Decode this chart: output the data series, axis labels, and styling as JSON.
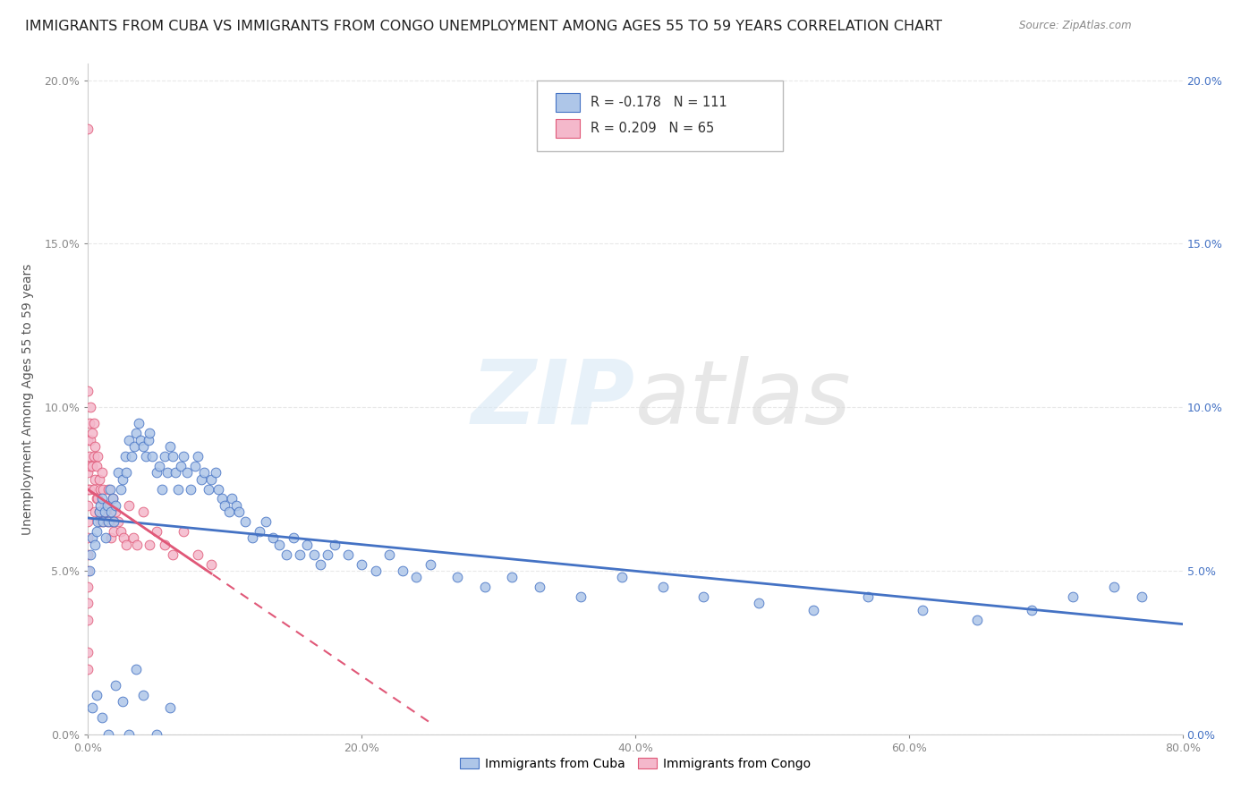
{
  "title": "IMMIGRANTS FROM CUBA VS IMMIGRANTS FROM CONGO UNEMPLOYMENT AMONG AGES 55 TO 59 YEARS CORRELATION CHART",
  "source": "Source: ZipAtlas.com",
  "ylabel": "Unemployment Among Ages 55 to 59 years",
  "xlim": [
    0.0,
    0.8
  ],
  "ylim": [
    0.0,
    0.205
  ],
  "xticks": [
    0.0,
    0.2,
    0.4,
    0.6,
    0.8
  ],
  "xticklabels": [
    "0.0%",
    "20.0%",
    "40.0%",
    "60.0%",
    "80.0%"
  ],
  "yticks": [
    0.0,
    0.05,
    0.1,
    0.15,
    0.2
  ],
  "yticklabels_left": [
    "0.0%",
    "5.0%",
    "10.0%",
    "15.0%",
    "20.0%"
  ],
  "yticklabels_right": [
    "0.0%",
    "5.0%",
    "10.0%",
    "15.0%",
    "20.0%"
  ],
  "cuba_R": -0.178,
  "cuba_N": 111,
  "congo_R": 0.209,
  "congo_N": 65,
  "cuba_color": "#aec6e8",
  "congo_color": "#f4b8cb",
  "cuba_line_color": "#4472c4",
  "congo_line_color": "#e05878",
  "watermark": "ZIPatlas",
  "background_color": "#ffffff",
  "cuba_scatter_x": [
    0.001,
    0.002,
    0.003,
    0.005,
    0.006,
    0.007,
    0.008,
    0.009,
    0.01,
    0.011,
    0.012,
    0.013,
    0.014,
    0.015,
    0.016,
    0.017,
    0.018,
    0.019,
    0.02,
    0.022,
    0.024,
    0.025,
    0.027,
    0.028,
    0.03,
    0.032,
    0.034,
    0.035,
    0.037,
    0.038,
    0.04,
    0.042,
    0.044,
    0.045,
    0.047,
    0.05,
    0.052,
    0.054,
    0.056,
    0.058,
    0.06,
    0.062,
    0.064,
    0.066,
    0.068,
    0.07,
    0.072,
    0.075,
    0.078,
    0.08,
    0.083,
    0.085,
    0.088,
    0.09,
    0.093,
    0.095,
    0.098,
    0.1,
    0.103,
    0.105,
    0.108,
    0.11,
    0.115,
    0.12,
    0.125,
    0.13,
    0.135,
    0.14,
    0.145,
    0.15,
    0.155,
    0.16,
    0.165,
    0.17,
    0.175,
    0.18,
    0.19,
    0.2,
    0.21,
    0.22,
    0.23,
    0.24,
    0.25,
    0.27,
    0.29,
    0.31,
    0.33,
    0.36,
    0.39,
    0.42,
    0.45,
    0.49,
    0.53,
    0.57,
    0.61,
    0.65,
    0.69,
    0.72,
    0.75,
    0.77,
    0.003,
    0.006,
    0.01,
    0.015,
    0.02,
    0.025,
    0.03,
    0.035,
    0.04,
    0.05,
    0.06
  ],
  "cuba_scatter_y": [
    0.05,
    0.055,
    0.06,
    0.058,
    0.062,
    0.065,
    0.068,
    0.07,
    0.072,
    0.065,
    0.068,
    0.06,
    0.07,
    0.065,
    0.075,
    0.068,
    0.072,
    0.065,
    0.07,
    0.08,
    0.075,
    0.078,
    0.085,
    0.08,
    0.09,
    0.085,
    0.088,
    0.092,
    0.095,
    0.09,
    0.088,
    0.085,
    0.09,
    0.092,
    0.085,
    0.08,
    0.082,
    0.075,
    0.085,
    0.08,
    0.088,
    0.085,
    0.08,
    0.075,
    0.082,
    0.085,
    0.08,
    0.075,
    0.082,
    0.085,
    0.078,
    0.08,
    0.075,
    0.078,
    0.08,
    0.075,
    0.072,
    0.07,
    0.068,
    0.072,
    0.07,
    0.068,
    0.065,
    0.06,
    0.062,
    0.065,
    0.06,
    0.058,
    0.055,
    0.06,
    0.055,
    0.058,
    0.055,
    0.052,
    0.055,
    0.058,
    0.055,
    0.052,
    0.05,
    0.055,
    0.05,
    0.048,
    0.052,
    0.048,
    0.045,
    0.048,
    0.045,
    0.042,
    0.048,
    0.045,
    0.042,
    0.04,
    0.038,
    0.042,
    0.038,
    0.035,
    0.038,
    0.042,
    0.045,
    0.042,
    0.008,
    0.012,
    0.005,
    0.0,
    0.015,
    0.01,
    0.0,
    0.02,
    0.012,
    0.0,
    0.008
  ],
  "congo_scatter_x": [
    0.0,
    0.0,
    0.0,
    0.0,
    0.0,
    0.0,
    0.0,
    0.0,
    0.0,
    0.0,
    0.0,
    0.0,
    0.0,
    0.0,
    0.0,
    0.001,
    0.001,
    0.001,
    0.002,
    0.002,
    0.002,
    0.003,
    0.003,
    0.004,
    0.004,
    0.004,
    0.005,
    0.005,
    0.005,
    0.006,
    0.006,
    0.007,
    0.007,
    0.008,
    0.008,
    0.009,
    0.009,
    0.01,
    0.01,
    0.011,
    0.011,
    0.012,
    0.013,
    0.014,
    0.015,
    0.016,
    0.017,
    0.018,
    0.019,
    0.02,
    0.022,
    0.024,
    0.026,
    0.028,
    0.03,
    0.033,
    0.036,
    0.04,
    0.045,
    0.05,
    0.056,
    0.062,
    0.07,
    0.08,
    0.09
  ],
  "congo_scatter_y": [
    0.185,
    0.105,
    0.09,
    0.08,
    0.075,
    0.07,
    0.065,
    0.06,
    0.055,
    0.05,
    0.045,
    0.04,
    0.035,
    0.025,
    0.02,
    0.095,
    0.085,
    0.075,
    0.1,
    0.09,
    0.082,
    0.092,
    0.082,
    0.095,
    0.085,
    0.075,
    0.088,
    0.078,
    0.068,
    0.082,
    0.072,
    0.085,
    0.072,
    0.078,
    0.068,
    0.075,
    0.065,
    0.08,
    0.068,
    0.075,
    0.065,
    0.07,
    0.068,
    0.065,
    0.075,
    0.065,
    0.06,
    0.072,
    0.062,
    0.068,
    0.065,
    0.062,
    0.06,
    0.058,
    0.07,
    0.06,
    0.058,
    0.068,
    0.058,
    0.062,
    0.058,
    0.055,
    0.062,
    0.055,
    0.052
  ],
  "grid_color": "#e8e8e8",
  "title_fontsize": 11.5,
  "label_fontsize": 10,
  "tick_fontsize": 9,
  "legend_fontsize": 10,
  "right_tick_color": "#4472c4"
}
